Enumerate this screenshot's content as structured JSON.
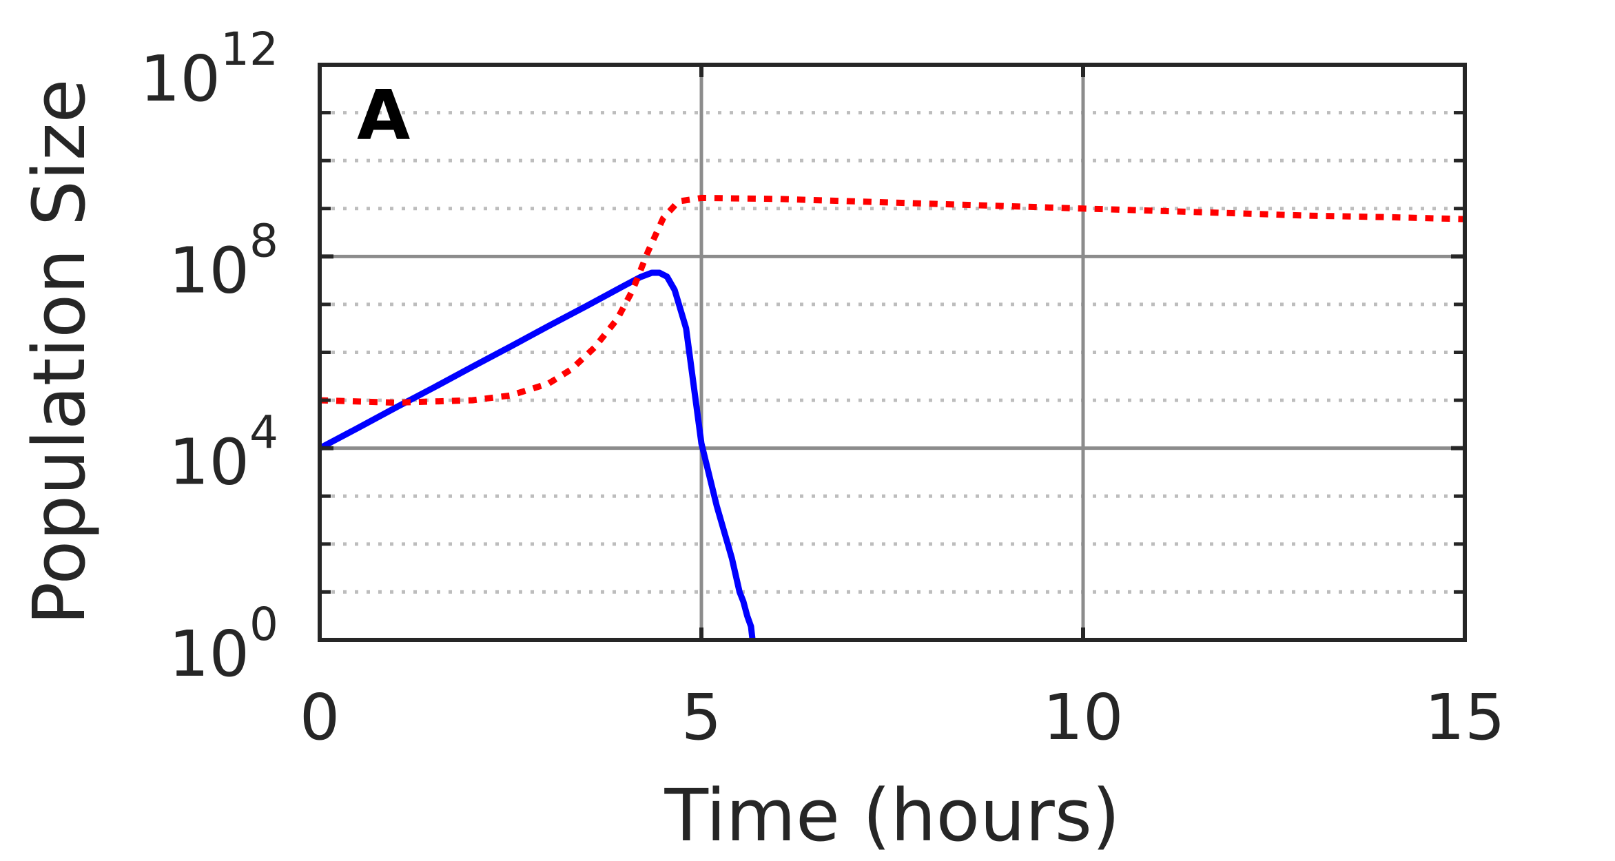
{
  "chart_data": {
    "type": "line",
    "panel_label": "A",
    "xlabel": "Time (hours)",
    "ylabel": "Population Size",
    "xlim": [
      0,
      15
    ],
    "ylim_log10": [
      0,
      12
    ],
    "yscale": "log",
    "x_ticks": [
      {
        "value": 0,
        "label": "0"
      },
      {
        "value": 5,
        "label": "5"
      },
      {
        "value": 10,
        "label": "10"
      },
      {
        "value": 15,
        "label": "15"
      }
    ],
    "y_ticks": [
      {
        "log10": 0,
        "base": "10",
        "exp": "0"
      },
      {
        "log10": 4,
        "base": "10",
        "exp": "4"
      },
      {
        "log10": 8,
        "base": "10",
        "exp": "8"
      },
      {
        "log10": 12,
        "base": "10",
        "exp": "12"
      }
    ],
    "major_grid": true,
    "minor_grid_log10": [
      1,
      2,
      3,
      5,
      6,
      7,
      9,
      10,
      11
    ],
    "colors": {
      "axis": "#262626",
      "major_grid": "#8c8c8c",
      "minor_grid": "#bdbdbd"
    },
    "series": [
      {
        "color": "#0000ff",
        "style": "solid",
        "x": [
          0,
          0.5,
          1,
          1.5,
          2,
          2.5,
          3,
          3.5,
          4,
          4.2,
          4.35,
          4.45,
          4.55,
          4.65,
          4.8,
          5.0,
          5.2,
          5.4,
          5.5,
          5.55,
          5.6,
          5.65,
          5.67
        ],
        "y_log10": [
          4.0,
          4.42,
          4.85,
          5.27,
          5.7,
          6.12,
          6.55,
          6.97,
          7.4,
          7.57,
          7.66,
          7.66,
          7.58,
          7.3,
          6.5,
          4.1,
          2.8,
          1.7,
          1.0,
          0.8,
          0.5,
          0.28,
          0.0
        ]
      },
      {
        "color": "#ff0000",
        "style": "dotted",
        "x": [
          0,
          1,
          2,
          2.5,
          3,
          3.3,
          3.6,
          3.9,
          4.1,
          4.3,
          4.5,
          4.7,
          5.0,
          6,
          7,
          8,
          9,
          10,
          11,
          12,
          13,
          14,
          15
        ],
        "y_log10": [
          5.0,
          4.95,
          5.0,
          5.1,
          5.35,
          5.65,
          6.1,
          6.7,
          7.3,
          8.1,
          8.8,
          9.15,
          9.22,
          9.2,
          9.15,
          9.1,
          9.05,
          9.0,
          8.95,
          8.9,
          8.85,
          8.82,
          8.78
        ]
      }
    ]
  }
}
